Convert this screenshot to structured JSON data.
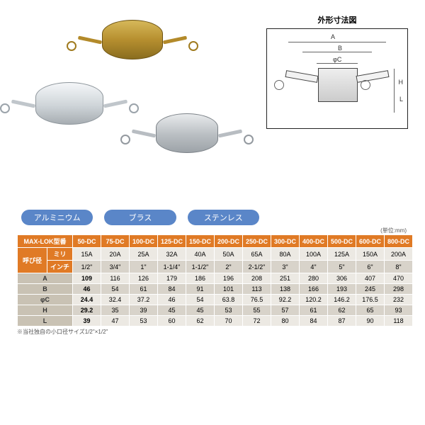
{
  "diagram_title": "外形寸法図",
  "diagram_labels": {
    "A": "A",
    "B": "B",
    "phiC": "φC",
    "H": "H",
    "L": "L"
  },
  "material_labels": [
    "アルミニウム",
    "ブラス",
    "ステンレス"
  ],
  "unit_note": "(単位:mm)",
  "footnote": "※当社独自の小口径サイズ1/2\"×1/2\"",
  "table": {
    "model_header": "MAX-LOK型番",
    "size_header": "呼び径",
    "size_sub_mm": "ミリ",
    "size_sub_in": "インチ",
    "models": [
      "50-DC",
      "75-DC",
      "100-DC",
      "125-DC",
      "150-DC",
      "200-DC",
      "250-DC",
      "300-DC",
      "400-DC",
      "500-DC",
      "600-DC",
      "800-DC"
    ],
    "size_mm": [
      "15A",
      "20A",
      "25A",
      "32A",
      "40A",
      "50A",
      "65A",
      "80A",
      "100A",
      "125A",
      "150A",
      "200A"
    ],
    "size_in": [
      "1/2\"",
      "3/4\"",
      "1\"",
      "1-1/4\"",
      "1-1/2\"",
      "2\"",
      "2-1/2\"",
      "3\"",
      "4\"",
      "5\"",
      "6\"",
      "8\""
    ],
    "rows": [
      {
        "label": "A",
        "vals": [
          "109",
          "116",
          "126",
          "179",
          "186",
          "196",
          "208",
          "251",
          "280",
          "306",
          "407",
          "470"
        ]
      },
      {
        "label": "B",
        "vals": [
          "46",
          "54",
          "61",
          "84",
          "91",
          "101",
          "113",
          "138",
          "166",
          "193",
          "245",
          "298"
        ]
      },
      {
        "label": "φC",
        "vals": [
          "24.4",
          "32.4",
          "37.2",
          "46",
          "54",
          "63.8",
          "76.5",
          "92.2",
          "120.2",
          "146.2",
          "176.5",
          "232"
        ]
      },
      {
        "label": "H",
        "vals": [
          "29.2",
          "35",
          "39",
          "45",
          "45",
          "53",
          "55",
          "57",
          "61",
          "62",
          "65",
          "93"
        ]
      },
      {
        "label": "L",
        "vals": [
          "39",
          "47",
          "53",
          "60",
          "62",
          "70",
          "72",
          "80",
          "84",
          "87",
          "90",
          "118"
        ]
      }
    ]
  },
  "colors": {
    "header": "#e07a25",
    "chip": "#5a86c8",
    "row_light": "#ece9e3",
    "row_dark": "#d8d3ca"
  }
}
